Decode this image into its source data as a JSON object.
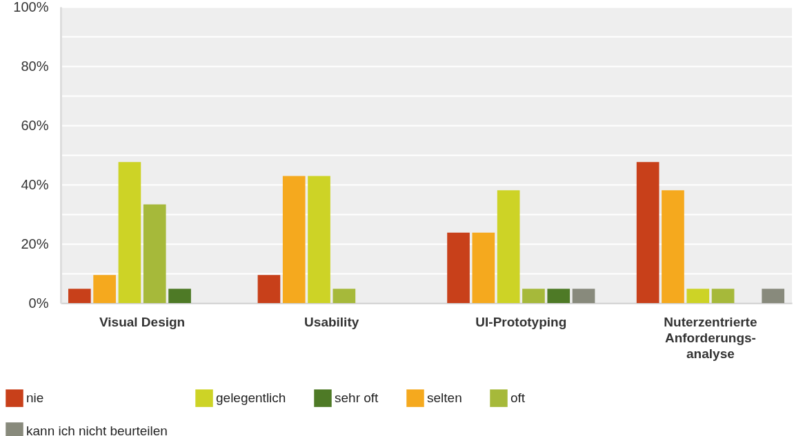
{
  "chart_data": {
    "type": "bar",
    "categories": [
      "Visual Design",
      "Usability",
      "UI-Prototyping",
      "Nuterzentrierte Anforderungs-analyse"
    ],
    "series": [
      {
        "name": "nie",
        "color": "#c8401a",
        "values": [
          4.8,
          9.5,
          23.8,
          47.6
        ]
      },
      {
        "name": "selten",
        "color": "#f5a91e",
        "values": [
          9.5,
          42.9,
          23.8,
          38.1
        ]
      },
      {
        "name": "gelegentlich",
        "color": "#cdd326",
        "values": [
          47.6,
          42.9,
          38.1,
          4.8
        ]
      },
      {
        "name": "oft",
        "color": "#a6b93a",
        "values": [
          33.3,
          4.8,
          4.8,
          4.8
        ]
      },
      {
        "name": "sehr oft",
        "color": "#4e7a26",
        "values": [
          4.8,
          0,
          4.8,
          0
        ]
      },
      {
        "name": "kann ich nicht beurteilen",
        "color": "#888a7c",
        "values": [
          0,
          0,
          4.8,
          4.8
        ]
      }
    ],
    "ylim": [
      0,
      100
    ],
    "yticks": [
      {
        "value": 0,
        "label": "0%"
      },
      {
        "value": 10,
        "label": null
      },
      {
        "value": 20,
        "label": "20%"
      },
      {
        "value": 30,
        "label": null
      },
      {
        "value": 40,
        "label": "40%"
      },
      {
        "value": 50,
        "label": null
      },
      {
        "value": 60,
        "label": "60%"
      },
      {
        "value": 70,
        "label": null
      },
      {
        "value": 80,
        "label": "80%"
      },
      {
        "value": 90,
        "label": null
      },
      {
        "value": 100,
        "label": "100%"
      }
    ],
    "grid": true,
    "legend": "bottom"
  }
}
